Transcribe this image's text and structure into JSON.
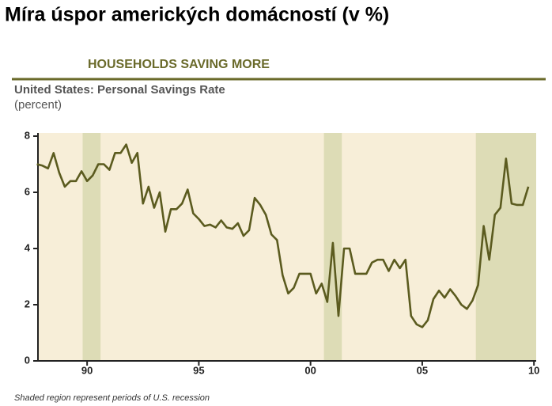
{
  "chart_data": {
    "type": "line",
    "title": "Míra úspor amerických domácností (v %)",
    "subtitle": "HOUSEHOLDS SAVING MORE",
    "chart_title": "United States: Personal Savings Rate",
    "y_label": "(percent)",
    "note": "Shaded region represent periods of U.S. recession",
    "x": [
      1987.75,
      1988,
      1988.25,
      1988.5,
      1988.75,
      1989,
      1989.25,
      1989.5,
      1989.75,
      1990,
      1990.25,
      1990.5,
      1990.75,
      1991,
      1991.25,
      1991.5,
      1991.75,
      1992,
      1992.25,
      1992.5,
      1992.75,
      1993,
      1993.25,
      1993.5,
      1993.75,
      1994,
      1994.25,
      1994.5,
      1994.75,
      1995,
      1995.25,
      1995.5,
      1995.75,
      1996,
      1996.25,
      1996.5,
      1996.75,
      1997,
      1997.25,
      1997.5,
      1997.75,
      1998,
      1998.25,
      1998.5,
      1998.75,
      1999,
      1999.25,
      1999.5,
      1999.75,
      2000,
      2000.25,
      2000.5,
      2000.75,
      2001,
      2001.25,
      2001.5,
      2001.75,
      2002,
      2002.25,
      2002.5,
      2002.75,
      2003,
      2003.25,
      2003.5,
      2003.75,
      2004,
      2004.25,
      2004.5,
      2004.75,
      2005,
      2005.25,
      2005.5,
      2005.75,
      2006,
      2006.25,
      2006.5,
      2006.75,
      2007,
      2007.25,
      2007.5,
      2007.75,
      2008,
      2008.25,
      2008.5,
      2008.75,
      2009,
      2009.25,
      2009.5,
      2009.75
    ],
    "series": [
      {
        "name": "Personal Savings Rate",
        "color": "#5b5b1f",
        "values": [
          7.0,
          6.95,
          6.85,
          7.4,
          6.7,
          6.2,
          6.4,
          6.4,
          6.75,
          6.4,
          6.6,
          7.0,
          7.0,
          6.8,
          7.4,
          7.4,
          7.7,
          7.05,
          7.4,
          5.6,
          6.2,
          5.45,
          6.0,
          4.6,
          5.4,
          5.4,
          5.6,
          6.1,
          5.25,
          5.05,
          4.8,
          4.85,
          4.75,
          5.0,
          4.75,
          4.7,
          4.9,
          4.45,
          4.65,
          5.8,
          5.55,
          5.2,
          4.5,
          4.3,
          3.05,
          2.4,
          2.6,
          3.1,
          3.1,
          3.1,
          2.4,
          2.75,
          2.1,
          4.2,
          1.6,
          4.0,
          4.0,
          3.1,
          3.1,
          3.1,
          3.5,
          3.6,
          3.6,
          3.2,
          3.6,
          3.3,
          3.6,
          1.6,
          1.3,
          1.2,
          1.45,
          2.2,
          2.5,
          2.25,
          2.55,
          2.3,
          2.0,
          1.85,
          2.15,
          2.7,
          4.8,
          3.6,
          5.2,
          5.45,
          7.2,
          5.6,
          5.55,
          5.55,
          6.2
        ]
      }
    ],
    "recessions": [
      [
        1989.8,
        1990.6
      ],
      [
        2000.6,
        2001.4
      ],
      [
        2007.4,
        2010.1
      ]
    ],
    "recession_color": "#dddcb6",
    "background_color": "#f7eed8",
    "xlim": [
      1987.8,
      2010.1
    ],
    "xticks": [
      {
        "value": 1990,
        "label": "90"
      },
      {
        "value": 1995,
        "label": "95"
      },
      {
        "value": 2000,
        "label": "00"
      },
      {
        "value": 2005,
        "label": "05"
      },
      {
        "value": 2010,
        "label": "10"
      }
    ],
    "ylim": [
      0,
      8
    ],
    "yticks": [
      0,
      2,
      4,
      6,
      8
    ]
  }
}
